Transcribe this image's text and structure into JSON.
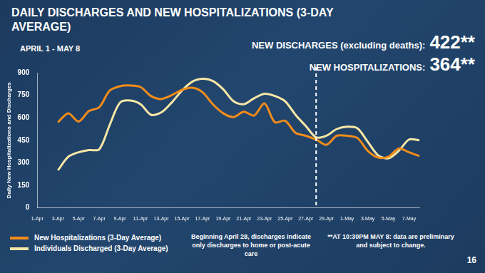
{
  "chart_data": {
    "type": "line",
    "title": "DAILY DISCHARGES AND NEW HOSPITALIZATIONS (3-DAY AVERAGE)",
    "subtitle": "APRIL 1 - MAY 8",
    "y_label": "Daily New Hospitalizations and Discharges",
    "categories": [
      "1-Apr",
      null,
      "3-Apr",
      null,
      "5-Apr",
      null,
      "7-Apr",
      null,
      "9-Apr",
      null,
      "11-Apr",
      null,
      "13-Apr",
      null,
      "15-Apr",
      null,
      "17-Apr",
      null,
      "19-Apr",
      null,
      "21-Apr",
      null,
      "23-Apr",
      null,
      "25-Apr",
      null,
      "27-Apr",
      null,
      "29-Apr",
      null,
      "1-May",
      null,
      "3-May",
      null,
      "5-May",
      null,
      "7-May",
      null
    ],
    "series": [
      {
        "name": "New Hospitalizations (3-Day Average)",
        "color": "#f28c1a",
        "values": [
          null,
          null,
          570,
          630,
          575,
          645,
          670,
          780,
          810,
          815,
          805,
          745,
          725,
          750,
          785,
          800,
          770,
          690,
          630,
          605,
          640,
          615,
          695,
          570,
          580,
          500,
          480,
          455,
          420,
          480,
          480,
          465,
          380,
          335,
          340,
          395,
          370,
          345
        ]
      },
      {
        "name": "Individuals Discharged (3-Day Average)",
        "color": "#f6e7a6",
        "values": [
          null,
          null,
          250,
          340,
          370,
          385,
          390,
          550,
          700,
          715,
          690,
          620,
          635,
          700,
          780,
          840,
          860,
          845,
          790,
          710,
          690,
          730,
          760,
          745,
          710,
          620,
          545,
          470,
          480,
          525,
          540,
          530,
          440,
          350,
          330,
          380,
          455,
          450
        ]
      }
    ],
    "ylim": [
      0,
      900
    ],
    "yticks": [
      0,
      150,
      300,
      450,
      600,
      750,
      900
    ],
    "grid": false,
    "legend": "bottom-left",
    "vline": {
      "category_index": 27,
      "line_style": "dashed"
    },
    "headline": [
      {
        "label": "NEW DISCHARGES (excluding deaths):",
        "value": "422**"
      },
      {
        "label": "NEW HOSPITALIZATIONS:",
        "value": "364**"
      }
    ],
    "notes": [
      "Beginning April 28, discharges indicate only discharges to home or post-acute care",
      "**AT 10:30PM MAY 8: data are preliminary and subject to change."
    ],
    "page_number": "16"
  }
}
